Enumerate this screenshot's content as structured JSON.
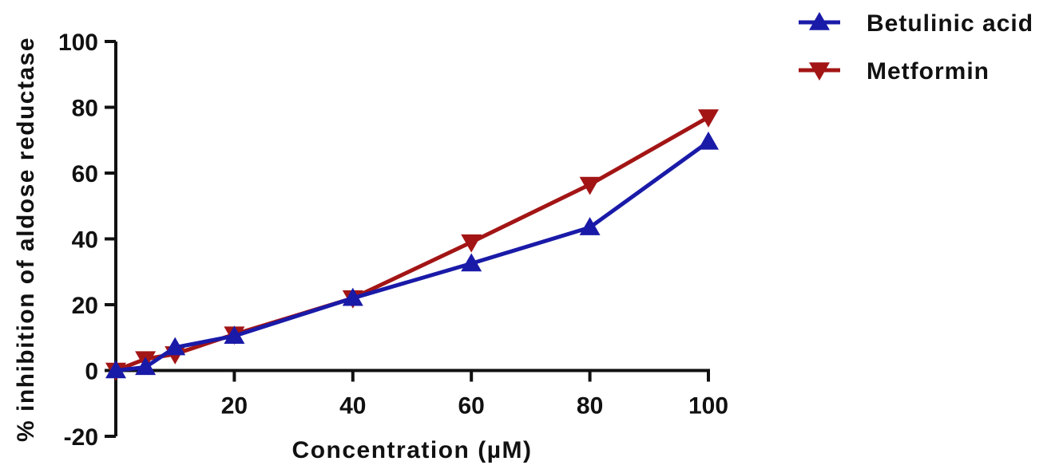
{
  "chart_data": {
    "type": "line",
    "title": "",
    "xlabel": "Concentration (µM)",
    "ylabel": "% inhibition of aldose reductase",
    "xlim": [
      0,
      100
    ],
    "ylim": [
      -20,
      100
    ],
    "xticks": [
      20,
      40,
      60,
      80,
      100
    ],
    "yticks": [
      -20,
      0,
      20,
      40,
      60,
      80,
      100
    ],
    "grid": false,
    "legend_position": "top-right",
    "x": [
      0,
      5,
      10,
      20,
      40,
      60,
      80,
      100
    ],
    "series": [
      {
        "name": "Betulinic acid",
        "color": "#1a1aa8",
        "marker": "triangle-up",
        "values": [
          0,
          1,
          7,
          10.5,
          22,
          32.5,
          43.5,
          69.5
        ]
      },
      {
        "name": "Metformin",
        "color": "#a31515",
        "marker": "triangle-down",
        "values": [
          0,
          3.5,
          5,
          11,
          22,
          39,
          56.5,
          77
        ]
      }
    ]
  }
}
